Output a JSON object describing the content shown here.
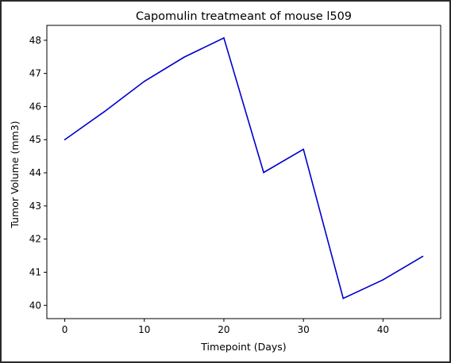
{
  "chart_data": {
    "type": "line",
    "title": "Capomulin treatmeant of mouse l509",
    "xlabel": "Timepoint (Days)",
    "ylabel": "Tumor Volume (mm3)",
    "x": [
      0,
      5,
      10,
      15,
      20,
      25,
      30,
      35,
      40,
      45
    ],
    "series": [
      {
        "values": [
          45.0,
          45.85,
          46.76,
          47.49,
          48.07,
          44.01,
          44.71,
          40.21,
          40.77,
          41.48
        ],
        "color": "#0000cc"
      }
    ],
    "xlim": [
      -2.25,
      47.25
    ],
    "ylim": [
      39.6,
      48.45
    ],
    "xticks": [
      0,
      10,
      20,
      30,
      40
    ],
    "yticks": [
      40,
      41,
      42,
      43,
      44,
      45,
      46,
      47,
      48
    ],
    "grid": false
  }
}
